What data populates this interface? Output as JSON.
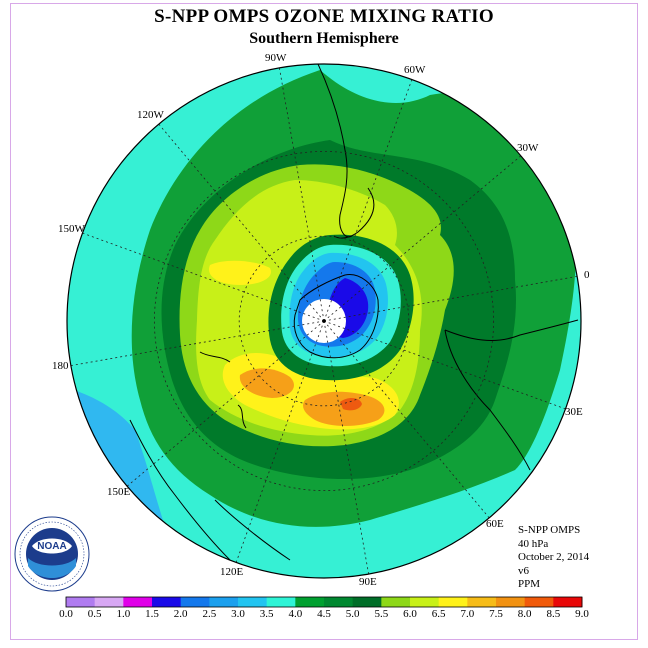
{
  "title": "S-NPP OMPS OZONE MIXING RATIO",
  "subtitle": "Southern Hemisphere",
  "longitude_labels": [
    "90W",
    "60W",
    "30W",
    "0",
    "30E",
    "60E",
    "90E",
    "120E",
    "150E",
    "180",
    "150W",
    "120W"
  ],
  "info": {
    "instrument": "S-NPP OMPS",
    "pressure": "40 hPa",
    "date": "October 2, 2014",
    "version": "v6",
    "units": "PPM"
  },
  "logo": {
    "text": "NOAA",
    "ring_text": "NATIONAL OCEANIC AND ATMOSPHERIC ADMINISTRATION · U.S. DEPARTMENT OF COMMERCE",
    "icon": "noaa-logo-icon"
  },
  "colorbar": {
    "labels": [
      "0.0",
      "0.5",
      "1.0",
      "1.5",
      "2.0",
      "2.5",
      "3.0",
      "3.5",
      "4.0",
      "4.5",
      "5.0",
      "5.5",
      "6.0",
      "6.5",
      "7.0",
      "7.5",
      "8.0",
      "8.5",
      "9.0"
    ],
    "colors": [
      "#b07cf0",
      "#d8a8f4",
      "#e000e8",
      "#1a0ae8",
      "#1478ec",
      "#1ca0ee",
      "#22c4f0",
      "#2ef4d6",
      "#00a030",
      "#008830",
      "#006e28",
      "#8ed818",
      "#c8f018",
      "#fff21a",
      "#f6bc18",
      "#f29212",
      "#f05a0a",
      "#e80808",
      "#8c5a46"
    ]
  },
  "map_colors": {
    "ocean_ring": "#36f0d4",
    "mid_green": "#10a038",
    "dark_green": "#007a2a",
    "light_green": "#8ed818",
    "yellow_green": "#c8f018",
    "yellow": "#fff21a",
    "orange": "#f6a018",
    "red_orange": "#ee5a10",
    "blue_light": "#22c4f0",
    "blue_mid": "#1478ec",
    "blue_deep": "#1a0ae8",
    "blue_outer": "#30b8f0"
  }
}
